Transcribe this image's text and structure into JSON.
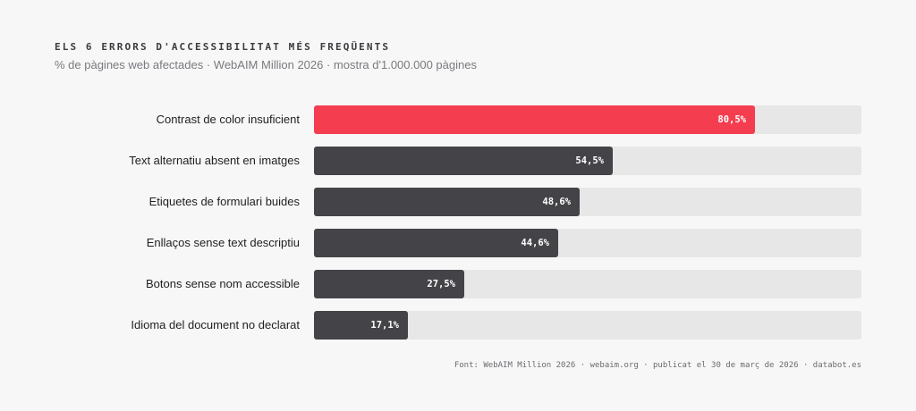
{
  "chart_data": {
    "type": "bar",
    "orientation": "horizontal",
    "title": "ELS 6 ERRORS D'ACCESSIBILITAT MÉS FREQÜENTS",
    "subtitle": "% de pàgines web afectades · WebAIM Million 2026 · mostra d'1.000.000 pàgines",
    "categories": [
      "Contrast de color insuficient",
      "Text alternatiu absent en imatges",
      "Etiquetes de formulari buides",
      "Enllaços sense text descriptiu",
      "Botons sense nom accessible",
      "Idioma del document no declarat"
    ],
    "values": [
      80.5,
      54.5,
      48.6,
      44.6,
      27.5,
      17.1
    ],
    "value_labels": [
      "80,5%",
      "54,5%",
      "48,6%",
      "44,6%",
      "27,5%",
      "17,1%"
    ],
    "xlim": [
      0,
      100
    ],
    "highlight_index": 0,
    "colors": {
      "highlight": "#f53d50",
      "bar": "#444448",
      "track": "#e7e7e8",
      "background": "#f7f7f7"
    },
    "grid": false,
    "legend": "none",
    "source": "Font: WebAIM Million 2026 · webaim.org · publicat el 30 de març de 2026 · databot.es"
  }
}
